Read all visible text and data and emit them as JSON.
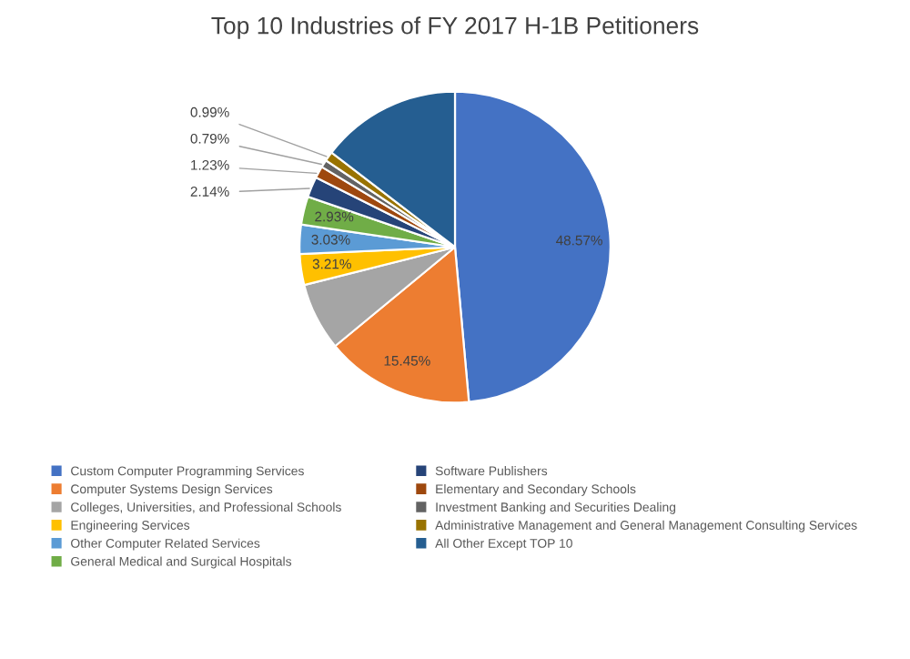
{
  "chart_data": {
    "type": "pie",
    "title": "Top 10 Industries of FY 2017 H-1B Petitioners",
    "categories": [
      "Custom Computer Programming Services",
      "Computer Systems Design Services",
      "Colleges, Universities, and Professional Schools",
      "Engineering Services",
      "Other Computer Related Services",
      "General Medical and Surgical Hospitals",
      "Software Publishers",
      "Elementary and Secondary Schools",
      "Investment Banking and Securities Dealing",
      "Administrative Management and General Management Consulting Services",
      "All Other Except TOP 10"
    ],
    "values": [
      48.57,
      15.45,
      7.06,
      3.21,
      3.03,
      2.93,
      2.14,
      1.23,
      0.79,
      0.99,
      14.6
    ],
    "value_labels": [
      "48.57%",
      "15.45%",
      null,
      "3.21%",
      "3.03%",
      "2.93%",
      "2.14%",
      "1.23%",
      "0.79%",
      "0.99%",
      null
    ],
    "colors": [
      "#4472c4",
      "#ed7d31",
      "#a5a5a5",
      "#ffc000",
      "#5b9bd5",
      "#70ad47",
      "#264478",
      "#9e480e",
      "#636363",
      "#997300",
      "#255e91"
    ],
    "legend": "bottom"
  }
}
